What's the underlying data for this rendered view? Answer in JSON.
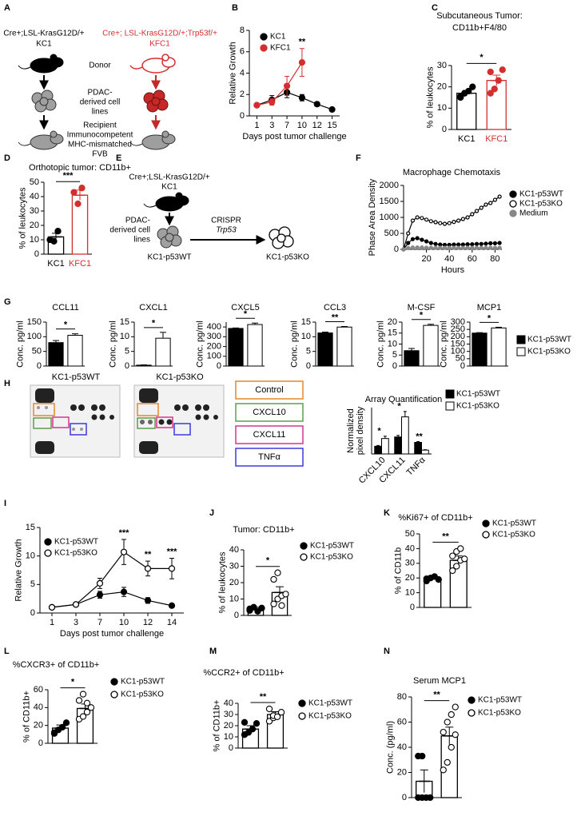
{
  "chart_data": [
    {
      "type": "line",
      "panel": "B",
      "ylabel": "Relative Growth",
      "xlabel": "Days post tumor challenge",
      "categories": [
        "1",
        "3",
        "7",
        "10",
        "12",
        "15"
      ],
      "ylim": [
        0,
        8
      ],
      "yticks": [
        0,
        2,
        4,
        6,
        8
      ],
      "series": [
        {
          "name": "KC1",
          "color": "#000000",
          "marker": "filled",
          "values": [
            1,
            1.5,
            2.2,
            1.7,
            1.1,
            0.6
          ],
          "errors": [
            0.1,
            0.4,
            0.5,
            0.3,
            0.2,
            0.1
          ]
        },
        {
          "name": "KFC1",
          "color": "#d32f2f",
          "marker": "filled",
          "values": [
            1,
            1.3,
            2.8,
            5.0,
            null,
            null
          ],
          "errors": [
            0.1,
            0.3,
            0.9,
            1.3,
            null,
            null
          ]
        }
      ],
      "annotations": [
        null,
        null,
        null,
        "**",
        null,
        null
      ]
    },
    {
      "type": "bar",
      "panel": "C",
      "title": "Subcutaneous Tumor:",
      "subtitle": "CD11b+F4/80",
      "ylabel": "% of leukocytes",
      "ylim": [
        0,
        30
      ],
      "yticks": [
        0,
        10,
        20,
        30
      ],
      "significance": "*",
      "groups": [
        {
          "name": "KC1",
          "color": "#000000",
          "point_fill": "#000000",
          "value": 17,
          "error": 1.3,
          "points": [
            15,
            17,
            18,
            20,
            15.5
          ]
        },
        {
          "name": "KFC1",
          "color": "#d32f2f",
          "point_fill": "#d32f2f",
          "value": 23,
          "error": 2.5,
          "points": [
            17,
            19,
            23,
            28,
            27
          ]
        }
      ]
    },
    {
      "type": "bar",
      "panel": "D",
      "title": "Orthotopic tumor: CD11b+",
      "ylabel": "% of leukocytes",
      "ylim": [
        0,
        50
      ],
      "yticks": [
        0,
        10,
        20,
        30,
        40,
        50
      ],
      "significance": "***",
      "groups": [
        {
          "name": "KC1",
          "color": "#000000",
          "point_fill": "#000000",
          "value": 12,
          "error": 2.5,
          "points": [
            10,
            9,
            16
          ]
        },
        {
          "name": "KFC1",
          "color": "#d32f2f",
          "point_fill": "#d32f2f",
          "value": 41,
          "error": 3.5,
          "points": [
            43,
            35,
            46
          ]
        }
      ]
    },
    {
      "type": "line",
      "panel": "F",
      "title": "Macrophage Chemotaxis",
      "ylabel": "Phase Area Density",
      "xlabel": "Hours",
      "x": [
        0,
        4,
        8,
        12,
        16,
        20,
        24,
        28,
        32,
        36,
        40,
        44,
        48,
        52,
        56,
        60,
        64,
        68,
        72,
        76,
        80,
        84
      ],
      "xlim": [
        0,
        86
      ],
      "xticks": [
        20,
        40,
        60,
        80
      ],
      "ylim": [
        0,
        2000
      ],
      "yticks": [
        0,
        500,
        1000,
        1500,
        2000
      ],
      "series": [
        {
          "name": "KC1-p53WT",
          "color": "#000000",
          "marker": "filled",
          "values": [
            0,
            200,
            320,
            350,
            300,
            250,
            200,
            170,
            150,
            140,
            140,
            150,
            150,
            150,
            160,
            160,
            170,
            170,
            180,
            190,
            190,
            200
          ]
        },
        {
          "name": "KC1-p53KO",
          "color": "#000000",
          "marker": "open",
          "values": [
            0,
            500,
            900,
            1000,
            980,
            930,
            880,
            850,
            820,
            800,
            820,
            860,
            900,
            950,
            1000,
            1100,
            1200,
            1300,
            1400,
            1450,
            1550,
            1650
          ]
        },
        {
          "name": "Medium",
          "color": "#888888",
          "marker": "filled",
          "values": [
            0,
            40,
            60,
            60,
            60,
            55,
            50,
            50,
            50,
            50,
            50,
            50,
            50,
            50,
            50,
            50,
            50,
            50,
            50,
            50,
            50,
            50
          ]
        }
      ]
    },
    {
      "type": "multibar",
      "panel": "G",
      "ylabel": "Conc. pg/ml",
      "series": [
        {
          "name": "KC1-p53WT",
          "color": "#000000",
          "fill": "#000000"
        },
        {
          "name": "KC1-p53KO",
          "color": "#000000",
          "fill": "#ffffff"
        }
      ],
      "subplots": [
        {
          "title": "CCL11",
          "ylim": [
            0,
            150
          ],
          "yticks": [
            0,
            50,
            100,
            150
          ],
          "values": [
            80,
            105
          ],
          "errors": [
            7,
            5
          ],
          "significance": "*"
        },
        {
          "title": "CXCL1",
          "ylim": [
            0,
            15
          ],
          "yticks": [
            0,
            5,
            10,
            15
          ],
          "values": [
            0.3,
            9.5
          ],
          "errors": [
            0.1,
            2
          ],
          "significance": "*"
        },
        {
          "title": "CXCL5",
          "ylim": [
            0,
            450
          ],
          "yticks": [
            0,
            100,
            200,
            300,
            400
          ],
          "values": [
            385,
            425
          ],
          "errors": [
            5,
            15
          ],
          "significance": "*"
        },
        {
          "title": "CCL3",
          "ylim": [
            0,
            15
          ],
          "yticks": [
            0,
            5,
            10,
            15
          ],
          "values": [
            11.3,
            13.3
          ],
          "errors": [
            0.3,
            0.2
          ],
          "significance": "**"
        },
        {
          "title": "M-CSF",
          "ylim": [
            0,
            20
          ],
          "yticks": [
            0,
            5,
            10,
            15,
            20
          ],
          "values": [
            7,
            18.5
          ],
          "errors": [
            1,
            0.5
          ],
          "significance": "*"
        },
        {
          "title": "MCP1",
          "ylim": [
            0,
            300
          ],
          "yticks": [
            0,
            50,
            100,
            150,
            200,
            250,
            300
          ],
          "values": [
            225,
            260
          ],
          "errors": [
            3,
            5
          ],
          "significance": "*"
        }
      ]
    },
    {
      "type": "grouped",
      "title": "Array Quantification",
      "ylabel": [
        "Normalized",
        "pixel density"
      ],
      "categories": [
        "CXCL10",
        "CXCL11",
        "TNFα"
      ],
      "ylim": [
        0,
        0.6
      ],
      "series": [
        {
          "name": "KC1-p53WT",
          "color": "#000000",
          "fill": "#000000",
          "values": [
            0.1,
            0.22,
            0.15
          ],
          "errors": [
            0.01,
            0.02,
            0.01
          ]
        },
        {
          "name": "KC1-p53KO",
          "color": "#000000",
          "fill": "#ffffff",
          "values": [
            0.2,
            0.48,
            0.05
          ],
          "errors": [
            0.03,
            0.07,
            0.005
          ]
        }
      ],
      "annotations": [
        "*",
        "*",
        "**"
      ]
    },
    {
      "type": "line",
      "panel": "I",
      "ylabel": "Relative Growth",
      "xlabel": "Days post tumor challenge",
      "categories": [
        "1",
        "3",
        "7",
        "10",
        "12",
        "14"
      ],
      "ylim": [
        0,
        15
      ],
      "yticks": [
        0,
        5,
        10,
        15
      ],
      "series": [
        {
          "name": "KC1-p53WT",
          "color": "#000000",
          "marker": "filled",
          "values": [
            1,
            1.5,
            3.2,
            3.7,
            2.2,
            1.3
          ],
          "errors": [
            0.1,
            0.2,
            0.6,
            0.8,
            0.5,
            0.3
          ]
        },
        {
          "name": "KC1-p53KO",
          "color": "#000000",
          "marker": "open",
          "values": [
            1,
            1.5,
            5.2,
            10.7,
            7.8,
            7.8
          ],
          "errors": [
            0.1,
            0.2,
            0.9,
            2.2,
            1.3,
            1.8
          ]
        }
      ],
      "annotations": [
        null,
        null,
        null,
        "***",
        "**",
        "***"
      ]
    },
    {
      "type": "bar",
      "panel": "J",
      "title": "Tumor: CD11b+",
      "ylabel": "% of leukocytes",
      "ylim": [
        0,
        40
      ],
      "yticks": [
        0,
        10,
        20,
        30,
        40
      ],
      "significance": "*",
      "legend": true,
      "groups": [
        {
          "name": "KC1-p53WT",
          "color": "#000000",
          "point_fill": "#000000",
          "value": 4,
          "error": 1,
          "points": [
            3,
            5,
            2.5,
            4.5,
            4
          ]
        },
        {
          "name": "KC1-p53KO",
          "color": "#000000",
          "point_fill": "#ffffff",
          "value": 14,
          "error": 3.5,
          "points": [
            7,
            10,
            12,
            13,
            22,
            26,
            6
          ]
        }
      ]
    },
    {
      "type": "bar",
      "panel": "K",
      "title": "%Ki67+ of CD11b+",
      "ylabel": "% of CD11b",
      "ylim": [
        0,
        50
      ],
      "yticks": [
        0,
        10,
        20,
        30,
        40,
        50
      ],
      "significance": "**",
      "legend": true,
      "groups": [
        {
          "name": "KC1-p53WT",
          "color": "#000000",
          "point_fill": "#000000",
          "value": 19.5,
          "error": 1,
          "points": [
            18,
            20,
            21,
            19,
            19.5
          ]
        },
        {
          "name": "KC1-p53KO",
          "color": "#000000",
          "point_fill": "#ffffff",
          "value": 32,
          "error": 3,
          "points": [
            25,
            28,
            32,
            33,
            35,
            38,
            40
          ]
        }
      ]
    },
    {
      "type": "bar",
      "panel": "L",
      "title": "%CXCR3+ of CD11b+",
      "ylabel": "% of CD11b+",
      "ylim": [
        0,
        60
      ],
      "yticks": [
        0,
        20,
        40,
        60
      ],
      "significance": "*",
      "legend": true,
      "groups": [
        {
          "name": "KC1-p53WT",
          "color": "#000000",
          "point_fill": "#000000",
          "value": 17,
          "error": 3.5,
          "points": [
            12,
            15,
            18,
            23,
            11
          ]
        },
        {
          "name": "KC1-p53KO",
          "color": "#000000",
          "point_fill": "#ffffff",
          "value": 39,
          "error": 5,
          "points": [
            27,
            30,
            35,
            40,
            48,
            55,
            45
          ]
        }
      ]
    },
    {
      "type": "bar",
      "panel": "M",
      "title": "%CCR2+ of CD11b+",
      "ylabel": "% of CD11b+",
      "ylim": [
        0,
        40
      ],
      "yticks": [
        0,
        10,
        20,
        30,
        40
      ],
      "significance": "**",
      "legend": true,
      "groups": [
        {
          "name": "KC1-p53WT",
          "color": "#000000",
          "point_fill": "#000000",
          "value": 17,
          "error": 3,
          "points": [
            12,
            14,
            17,
            22,
            23
          ]
        },
        {
          "name": "KC1-p53KO",
          "color": "#000000",
          "point_fill": "#ffffff",
          "value": 30,
          "error": 2.5,
          "points": [
            24,
            27,
            30,
            32,
            35,
            29,
            28
          ]
        }
      ]
    },
    {
      "type": "bar",
      "panel": "N",
      "title": "Serum MCP1",
      "ylabel": "Conc. (pg/ml)",
      "ylim": [
        0,
        80
      ],
      "yticks": [
        0,
        20,
        40,
        60,
        80
      ],
      "significance": "**",
      "legend": true,
      "groups": [
        {
          "name": "KC1-p53WT",
          "color": "#000000",
          "point_fill": "#000000",
          "value": 13,
          "error": 9,
          "points": [
            0,
            0,
            0,
            0,
            33,
            33
          ]
        },
        {
          "name": "KC1-p53KO",
          "color": "#000000",
          "point_fill": "#ffffff",
          "value": 49,
          "error": 7,
          "points": [
            22,
            28,
            40,
            50,
            52,
            60,
            66,
            72
          ]
        }
      ]
    }
  ],
  "diagrams": {
    "A": {
      "panel": "A",
      "kc1_genotype": "Cre+;LSL-KrasG12D/+",
      "kc1": "KC1",
      "kfc1_genotype": "Cre+; LSL-KrasG12D/+;Trp53f/+",
      "kfc1": "KFC1",
      "donor": "Donor",
      "cells": [
        "PDAC-",
        "derived cell",
        "lines"
      ],
      "recipient": [
        "Recipient",
        "Immunocompetent",
        "MHC-mismatched",
        "FVB"
      ]
    },
    "E": {
      "panel": "E",
      "genotype": "Cre+;LSL-KrasG12D/+",
      "line": "KC1",
      "cells": [
        "PDAC-",
        "derived cell",
        "lines"
      ],
      "method": "CRISPR",
      "gene": "Trp53",
      "wt": "KC1-p53WT",
      "ko": "KC1-p53KO"
    },
    "H": {
      "panel": "H",
      "blot_wt": "KC1-p53WT",
      "blot_ko": "KC1-p53KO",
      "boxes": [
        "Control",
        "CXCL10",
        "CXCL11",
        "TNFα"
      ]
    }
  }
}
